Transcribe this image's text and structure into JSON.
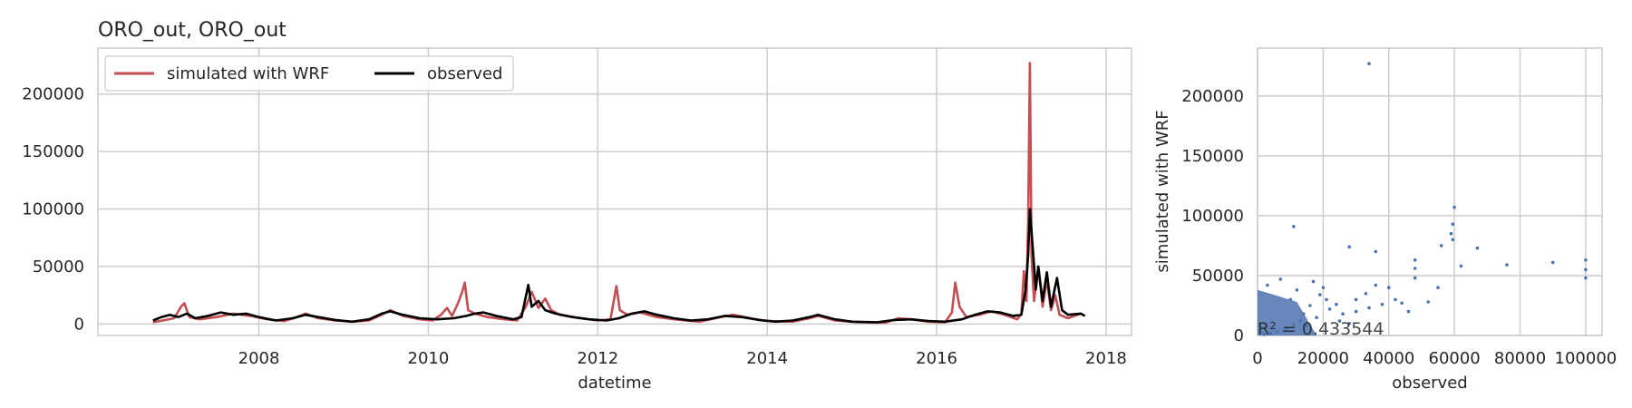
{
  "chart_data": [
    {
      "type": "line",
      "title": "ORO_out, ORO_out",
      "xlabel": "datetime",
      "ylabel": "",
      "xlim": [
        2006.1,
        2018.3
      ],
      "ylim": [
        -10000,
        240000
      ],
      "xticks": [
        2008,
        2010,
        2012,
        2014,
        2016,
        2018
      ],
      "yticks": [
        0,
        50000,
        100000,
        150000,
        200000
      ],
      "grid": true,
      "legend_position": "top-left",
      "series": [
        {
          "name": "simulated with WRF",
          "color": "#c44e52",
          "points": [
            [
              2006.75,
              1500
            ],
            [
              2006.9,
              3500
            ],
            [
              2007.0,
              5000
            ],
            [
              2007.08,
              15000
            ],
            [
              2007.12,
              18000
            ],
            [
              2007.18,
              6000
            ],
            [
              2007.3,
              4000
            ],
            [
              2007.5,
              6000
            ],
            [
              2007.7,
              9000
            ],
            [
              2007.9,
              7000
            ],
            [
              2008.1,
              4000
            ],
            [
              2008.3,
              2500
            ],
            [
              2008.45,
              6000
            ],
            [
              2008.55,
              9000
            ],
            [
              2008.7,
              5000
            ],
            [
              2008.9,
              3000
            ],
            [
              2009.1,
              2000
            ],
            [
              2009.3,
              3000
            ],
            [
              2009.45,
              8000
            ],
            [
              2009.55,
              12000
            ],
            [
              2009.7,
              7000
            ],
            [
              2009.9,
              4000
            ],
            [
              2010.05,
              3000
            ],
            [
              2010.15,
              8000
            ],
            [
              2010.22,
              14000
            ],
            [
              2010.28,
              7000
            ],
            [
              2010.35,
              18000
            ],
            [
              2010.4,
              28000
            ],
            [
              2010.43,
              36000
            ],
            [
              2010.47,
              12000
            ],
            [
              2010.55,
              9000
            ],
            [
              2010.7,
              6000
            ],
            [
              2010.9,
              4000
            ],
            [
              2011.05,
              3000
            ],
            [
              2011.15,
              15000
            ],
            [
              2011.22,
              28000
            ],
            [
              2011.3,
              14000
            ],
            [
              2011.38,
              22000
            ],
            [
              2011.45,
              12000
            ],
            [
              2011.55,
              8000
            ],
            [
              2011.8,
              5000
            ],
            [
              2012.0,
              3000
            ],
            [
              2012.15,
              4000
            ],
            [
              2012.22,
              33000
            ],
            [
              2012.26,
              12000
            ],
            [
              2012.35,
              8000
            ],
            [
              2012.5,
              10000
            ],
            [
              2012.7,
              6000
            ],
            [
              2012.9,
              4000
            ],
            [
              2013.2,
              2000
            ],
            [
              2013.45,
              6000
            ],
            [
              2013.6,
              8000
            ],
            [
              2013.8,
              5000
            ],
            [
              2014.0,
              2500
            ],
            [
              2014.3,
              2000
            ],
            [
              2014.5,
              5000
            ],
            [
              2014.6,
              7000
            ],
            [
              2014.8,
              3000
            ],
            [
              2015.1,
              1500
            ],
            [
              2015.4,
              1200
            ],
            [
              2015.55,
              5000
            ],
            [
              2015.7,
              4000
            ],
            [
              2015.9,
              2000
            ],
            [
              2016.1,
              1500
            ],
            [
              2016.18,
              10000
            ],
            [
              2016.22,
              36000
            ],
            [
              2016.27,
              15000
            ],
            [
              2016.35,
              6000
            ],
            [
              2016.5,
              8000
            ],
            [
              2016.65,
              11000
            ],
            [
              2016.8,
              8000
            ],
            [
              2016.95,
              4000
            ],
            [
              2017.0,
              9000
            ],
            [
              2017.03,
              46000
            ],
            [
              2017.06,
              20000
            ],
            [
              2017.08,
              90000
            ],
            [
              2017.1,
              227000
            ],
            [
              2017.12,
              60000
            ],
            [
              2017.15,
              20000
            ],
            [
              2017.2,
              50000
            ],
            [
              2017.25,
              15000
            ],
            [
              2017.3,
              38000
            ],
            [
              2017.35,
              12000
            ],
            [
              2017.4,
              25000
            ],
            [
              2017.45,
              8000
            ],
            [
              2017.55,
              5000
            ],
            [
              2017.7,
              9000
            ],
            [
              2017.75,
              7000
            ]
          ]
        },
        {
          "name": "observed",
          "color": "#000000",
          "points": [
            [
              2006.75,
              3000
            ],
            [
              2006.85,
              6000
            ],
            [
              2006.95,
              8000
            ],
            [
              2007.05,
              6000
            ],
            [
              2007.15,
              9000
            ],
            [
              2007.25,
              5000
            ],
            [
              2007.4,
              7000
            ],
            [
              2007.55,
              10000
            ],
            [
              2007.7,
              8000
            ],
            [
              2007.85,
              9000
            ],
            [
              2008.0,
              6000
            ],
            [
              2008.2,
              3000
            ],
            [
              2008.4,
              5000
            ],
            [
              2008.55,
              8000
            ],
            [
              2008.7,
              6000
            ],
            [
              2008.9,
              3500
            ],
            [
              2009.1,
              2000
            ],
            [
              2009.3,
              4000
            ],
            [
              2009.45,
              9000
            ],
            [
              2009.55,
              11000
            ],
            [
              2009.7,
              8000
            ],
            [
              2009.9,
              5000
            ],
            [
              2010.1,
              4000
            ],
            [
              2010.3,
              5000
            ],
            [
              2010.45,
              7000
            ],
            [
              2010.55,
              9000
            ],
            [
              2010.65,
              10000
            ],
            [
              2010.8,
              7000
            ],
            [
              2011.0,
              4000
            ],
            [
              2011.1,
              6000
            ],
            [
              2011.18,
              34000
            ],
            [
              2011.22,
              15000
            ],
            [
              2011.3,
              20000
            ],
            [
              2011.38,
              12000
            ],
            [
              2011.5,
              9000
            ],
            [
              2011.7,
              6000
            ],
            [
              2011.9,
              4000
            ],
            [
              2012.1,
              3000
            ],
            [
              2012.25,
              5000
            ],
            [
              2012.4,
              9000
            ],
            [
              2012.55,
              11000
            ],
            [
              2012.7,
              8000
            ],
            [
              2012.9,
              5000
            ],
            [
              2013.1,
              3000
            ],
            [
              2013.3,
              4000
            ],
            [
              2013.5,
              7000
            ],
            [
              2013.7,
              6000
            ],
            [
              2013.9,
              3500
            ],
            [
              2014.1,
              2000
            ],
            [
              2014.3,
              3000
            ],
            [
              2014.5,
              6000
            ],
            [
              2014.6,
              8000
            ],
            [
              2014.8,
              4000
            ],
            [
              2015.0,
              2000
            ],
            [
              2015.3,
              1500
            ],
            [
              2015.5,
              3500
            ],
            [
              2015.7,
              4000
            ],
            [
              2015.9,
              2500
            ],
            [
              2016.1,
              2000
            ],
            [
              2016.3,
              4000
            ],
            [
              2016.45,
              8000
            ],
            [
              2016.6,
              11000
            ],
            [
              2016.75,
              10000
            ],
            [
              2016.9,
              7000
            ],
            [
              2017.0,
              8000
            ],
            [
              2017.05,
              30000
            ],
            [
              2017.08,
              60000
            ],
            [
              2017.1,
              100000
            ],
            [
              2017.13,
              70000
            ],
            [
              2017.17,
              30000
            ],
            [
              2017.2,
              50000
            ],
            [
              2017.25,
              20000
            ],
            [
              2017.3,
              45000
            ],
            [
              2017.35,
              15000
            ],
            [
              2017.42,
              40000
            ],
            [
              2017.48,
              12000
            ],
            [
              2017.55,
              8000
            ],
            [
              2017.7,
              9000
            ],
            [
              2017.75,
              7000
            ]
          ]
        }
      ]
    },
    {
      "type": "scatter",
      "title": "",
      "xlabel": "observed",
      "ylabel": "simulated with WRF",
      "xlim": [
        0,
        105000
      ],
      "ylim": [
        0,
        240000
      ],
      "xticks": [
        0,
        20000,
        40000,
        60000,
        80000,
        100000
      ],
      "yticks": [
        0,
        50000,
        100000,
        150000,
        200000
      ],
      "grid": true,
      "color": "#4c72b0",
      "annotation": "R² = 0.433544",
      "points": [
        [
          34000,
          227000
        ],
        [
          11000,
          91000
        ],
        [
          60000,
          107000
        ],
        [
          59500,
          93000
        ],
        [
          59000,
          85000
        ],
        [
          59500,
          80000
        ],
        [
          28000,
          74000
        ],
        [
          67000,
          73000
        ],
        [
          56000,
          75000
        ],
        [
          36000,
          70000
        ],
        [
          62000,
          58000
        ],
        [
          76000,
          59000
        ],
        [
          90000,
          61000
        ],
        [
          100000,
          63000
        ],
        [
          100000,
          55000
        ],
        [
          100000,
          48000
        ],
        [
          48000,
          63000
        ],
        [
          48000,
          56000
        ],
        [
          48000,
          48000
        ],
        [
          40000,
          40000
        ],
        [
          36000,
          42000
        ],
        [
          33000,
          35000
        ],
        [
          30000,
          30000
        ],
        [
          24000,
          26000
        ],
        [
          22000,
          22000
        ],
        [
          26000,
          18000
        ],
        [
          19000,
          34000
        ],
        [
          16000,
          25000
        ],
        [
          14000,
          18000
        ],
        [
          13000,
          12000
        ],
        [
          11000,
          9000
        ],
        [
          9000,
          6000
        ],
        [
          8000,
          4000
        ],
        [
          6000,
          3000
        ],
        [
          4000,
          2000
        ],
        [
          2000,
          1000
        ],
        [
          42000,
          30000
        ],
        [
          44000,
          27000
        ],
        [
          38000,
          26000
        ],
        [
          34000,
          23000
        ],
        [
          20000,
          40000
        ],
        [
          17000,
          45000
        ],
        [
          12000,
          38000
        ],
        [
          10000,
          30000
        ],
        [
          7000,
          47000
        ],
        [
          3000,
          42000
        ],
        [
          52000,
          28000
        ],
        [
          46000,
          20000
        ],
        [
          18000,
          15000
        ],
        [
          25000,
          12000
        ],
        [
          28000,
          10000
        ],
        [
          15000,
          8000
        ],
        [
          30000,
          20000
        ],
        [
          21000,
          30000
        ],
        [
          55000,
          40000
        ]
      ]
    }
  ]
}
